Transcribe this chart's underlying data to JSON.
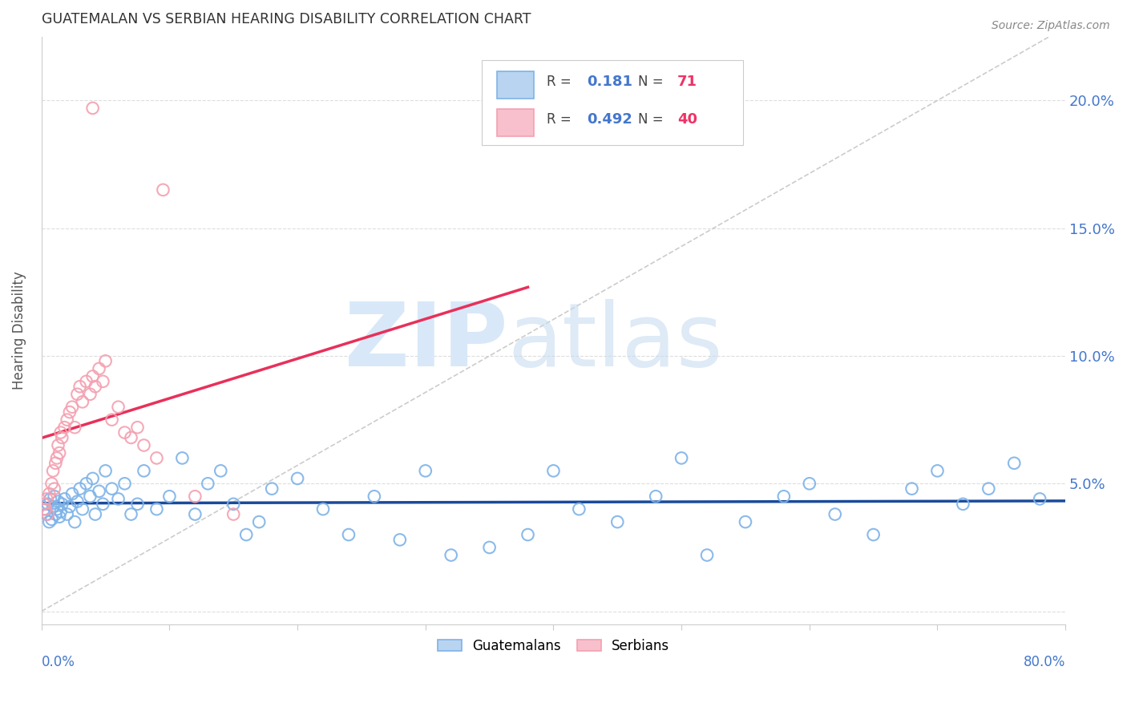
{
  "title": "GUATEMALAN VS SERBIAN HEARING DISABILITY CORRELATION CHART",
  "source": "Source: ZipAtlas.com",
  "ylabel": "Hearing Disability",
  "ytick_values": [
    0.0,
    0.05,
    0.1,
    0.15,
    0.2
  ],
  "xlim": [
    0.0,
    0.8
  ],
  "ylim": [
    -0.005,
    0.225
  ],
  "legend1_r": "0.181",
  "legend1_n": "71",
  "legend2_r": "0.492",
  "legend2_n": "40",
  "guatemalan_color": "#7EB3E8",
  "serbian_color": "#F4A0B0",
  "trendline_guatemalan_color": "#1A4A9B",
  "trendline_serbian_color": "#E8305A",
  "diagonal_color": "#CCCCCC",
  "background_color": "#FFFFFF",
  "title_color": "#333333",
  "source_color": "#888888",
  "axis_label_color": "#4477CC",
  "legend_r_color": "#4477CC",
  "legend_n_color": "#EE3366",
  "watermark_zip_color": "#D8E8F8",
  "watermark_atlas_color": "#C8DCF0"
}
